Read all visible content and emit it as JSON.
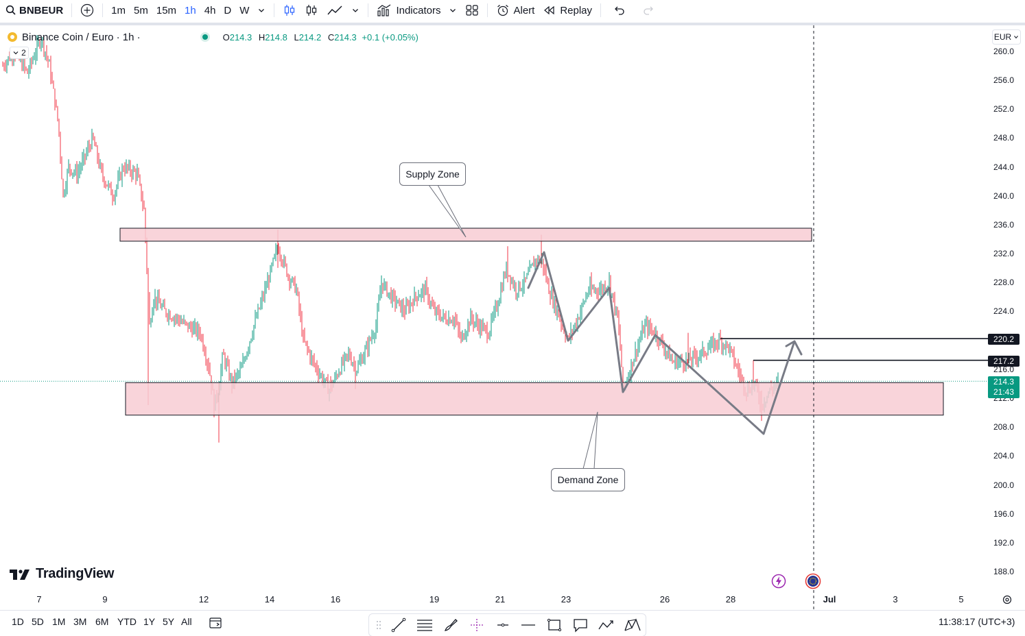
{
  "toolbar": {
    "symbol": "BNBEUR",
    "intervals": [
      "1m",
      "5m",
      "15m",
      "1h",
      "4h",
      "D",
      "W"
    ],
    "active_interval": "1h",
    "indicators_label": "Indicators",
    "alert_label": "Alert",
    "replay_label": "Replay"
  },
  "legend": {
    "title": "Binance Coin / Euro · 1h ·",
    "open_key": "O",
    "open": "214.3",
    "high_key": "H",
    "high": "214.8",
    "low_key": "L",
    "low": "214.2",
    "close_key": "C",
    "close": "214.3",
    "change": "+0.1 (+0.05%)",
    "indicator_count": "2"
  },
  "currency": "EUR",
  "price_axis": {
    "ticks": [
      "260.0",
      "256.0",
      "252.0",
      "248.0",
      "244.0",
      "240.0",
      "236.0",
      "232.0",
      "228.0",
      "224.0",
      "220.0",
      "216.0",
      "212.0",
      "208.0",
      "204.0",
      "200.0",
      "196.0",
      "192.0",
      "188.0"
    ],
    "tick_values": [
      260,
      256,
      252,
      248,
      244,
      240,
      236,
      232,
      228,
      224,
      220,
      216,
      212,
      208,
      204,
      200,
      196,
      192,
      188
    ],
    "level_labels": [
      "220.2",
      "217.2"
    ],
    "level_values": [
      220.2,
      217.2
    ],
    "live_price": "214.3",
    "countdown": "21:43"
  },
  "time_axis": {
    "ticks": [
      "7",
      "9",
      "12",
      "14",
      "16",
      "19",
      "21",
      "23",
      "26",
      "28",
      "Jul",
      "3",
      "5"
    ]
  },
  "annotations": {
    "supply_zone": "Supply Zone",
    "demand_zone": "Demand Zone"
  },
  "zones": {
    "supply": [
      233.7,
      235.5
    ],
    "demand": [
      209.6,
      214.1
    ]
  },
  "brand": "TradingView",
  "ranges": [
    "1D",
    "5D",
    "1M",
    "3M",
    "6M",
    "YTD",
    "1Y",
    "5Y",
    "All"
  ],
  "clock": "11:38:17 (UTC+3)",
  "colors": {
    "up": "#089981",
    "down": "#f23645",
    "zone_fill": "#f8ccd3",
    "accent": "#2962ff"
  }
}
